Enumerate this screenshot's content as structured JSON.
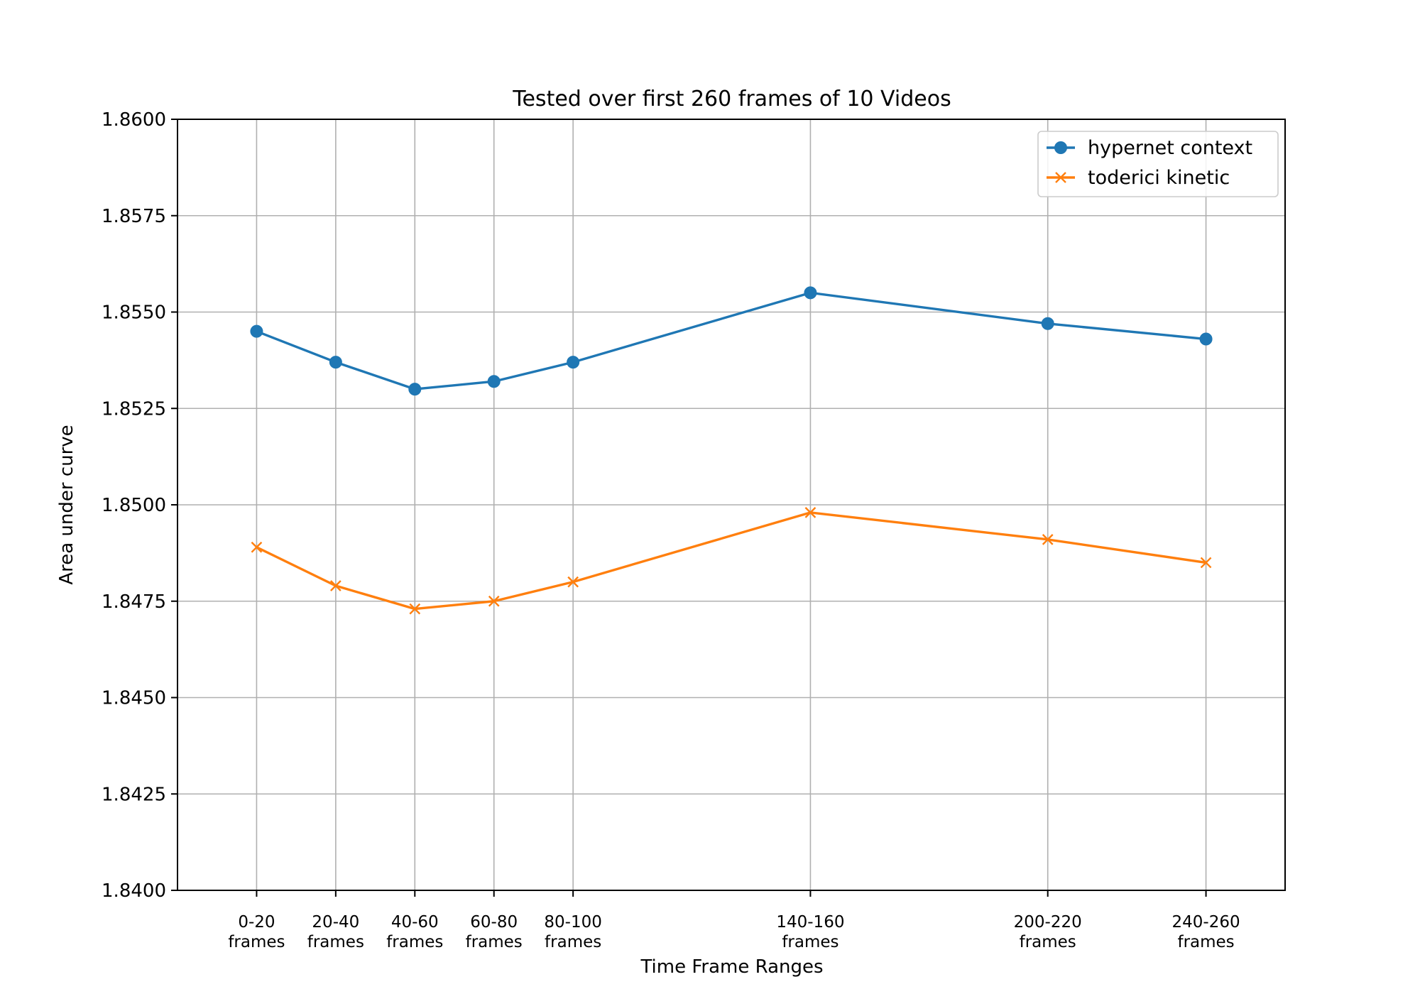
{
  "chart_data": {
    "type": "line",
    "title": "Tested over first 260 frames of 10 Videos",
    "xlabel": "Time Frame Ranges",
    "ylabel": "Area under curve",
    "x": [
      10,
      30,
      50,
      70,
      90,
      150,
      210,
      250
    ],
    "xlim": [
      -10,
      270
    ],
    "categories": [
      [
        "0-20",
        "frames"
      ],
      [
        "20-40",
        "frames"
      ],
      [
        "40-60",
        "frames"
      ],
      [
        "60-80",
        "frames"
      ],
      [
        "80-100",
        "frames"
      ],
      [
        "140-160",
        "frames"
      ],
      [
        "200-220",
        "frames"
      ],
      [
        "240-260",
        "frames"
      ]
    ],
    "ylim": [
      1.84,
      1.86
    ],
    "yticks": [
      "1.8400",
      "1.8425",
      "1.8450",
      "1.8475",
      "1.8500",
      "1.8525",
      "1.8550",
      "1.8575",
      "1.8600"
    ],
    "grid": true,
    "legend_position": "top-right",
    "series": [
      {
        "name": "hypernet context",
        "color": "#1f77b4",
        "marker": "circle",
        "values": [
          1.8545,
          1.8537,
          1.853,
          1.8532,
          1.8537,
          1.8555,
          1.8547,
          1.8543
        ]
      },
      {
        "name": "toderici kinetic",
        "color": "#ff7f0e",
        "marker": "x",
        "values": [
          1.8489,
          1.8479,
          1.8473,
          1.8475,
          1.848,
          1.8498,
          1.8491,
          1.8485
        ]
      }
    ]
  }
}
